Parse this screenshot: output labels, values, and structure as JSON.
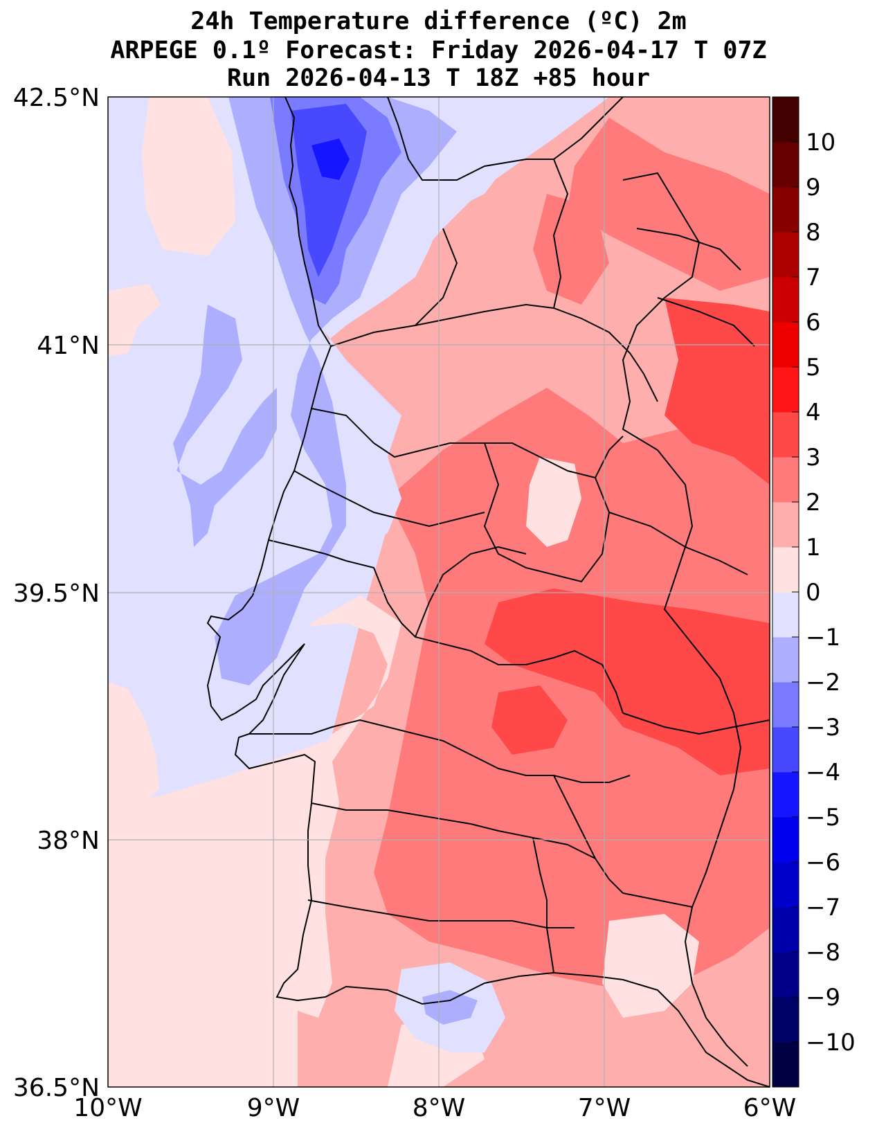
{
  "title": {
    "line1": "24h Temperature difference (ºC) 2m",
    "line2": "ARPEGE 0.1º Forecast: Friday 2026-04-17 T 07Z",
    "line3": "Run 2026-04-13 T 18Z +85 hour"
  },
  "map": {
    "lon_range": [
      -10,
      -6
    ],
    "lat_range": [
      36.5,
      42.5
    ],
    "x_ticks": [
      {
        "value": -10,
        "label": "10°W"
      },
      {
        "value": -9,
        "label": "9°W"
      },
      {
        "value": -8,
        "label": "8°W"
      },
      {
        "value": -7,
        "label": "7°W"
      },
      {
        "value": -6,
        "label": "6°W"
      }
    ],
    "y_ticks": [
      {
        "value": 42.5,
        "label": "42.5°N"
      },
      {
        "value": 41,
        "label": "41°N"
      },
      {
        "value": 39.5,
        "label": "39.5°N"
      },
      {
        "value": 38,
        "label": "38°N"
      },
      {
        "value": 36.5,
        "label": "36.5°N"
      }
    ]
  },
  "colorbar": {
    "levels": [
      -11,
      -10,
      -9,
      -8,
      -7,
      -6,
      -5,
      -4,
      -3,
      -2,
      -1,
      0,
      1,
      2,
      3,
      4,
      5,
      6,
      7,
      8,
      9,
      10,
      11
    ],
    "tick_labels": [
      "−10",
      "−9",
      "−8",
      "−7",
      "−6",
      "−5",
      "−4",
      "−3",
      "−2",
      "−1",
      "0",
      "1",
      "2",
      "3",
      "4",
      "5",
      "6",
      "7",
      "8",
      "9",
      "10"
    ],
    "tick_values": [
      -10,
      -9,
      -8,
      -7,
      -6,
      -5,
      -4,
      -3,
      -2,
      -1,
      0,
      1,
      2,
      3,
      4,
      5,
      6,
      7,
      8,
      9,
      10
    ],
    "colors": [
      "#000044",
      "#000066",
      "#000088",
      "#0000aa",
      "#0000cc",
      "#0000ee",
      "#1515ff",
      "#4848ff",
      "#7b7bff",
      "#aeaeff",
      "#e1e1ff",
      "#ffe1e1",
      "#ffaeae",
      "#ff7b7b",
      "#ff4848",
      "#ff1515",
      "#ee0000",
      "#cc0000",
      "#aa0000",
      "#880000",
      "#660000",
      "#440000"
    ]
  },
  "colors": {
    "neutral_negative": "#e1e1ff",
    "neutral_positive": "#ffe1e1",
    "cold": "#7b7bff",
    "warm": "#ff7b7b"
  }
}
